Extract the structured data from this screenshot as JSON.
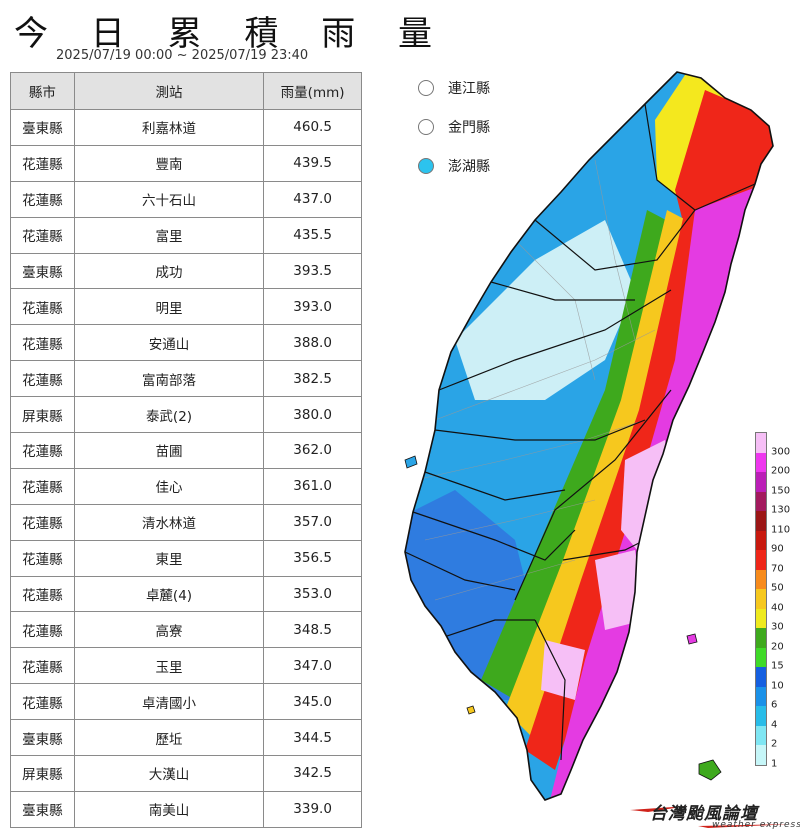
{
  "title": "今 日 累 積 雨 量",
  "period": "2025/07/19 00:00 ~ 2025/07/19 23:40",
  "table": {
    "headers": [
      "縣市",
      "測站",
      "雨量(mm)"
    ],
    "rows": [
      {
        "county": "臺東縣",
        "station": "利嘉林道",
        "rain": "460.5"
      },
      {
        "county": "花蓮縣",
        "station": "豐南",
        "rain": "439.5"
      },
      {
        "county": "花蓮縣",
        "station": "六十石山",
        "rain": "437.0"
      },
      {
        "county": "花蓮縣",
        "station": "富里",
        "rain": "435.5"
      },
      {
        "county": "臺東縣",
        "station": "成功",
        "rain": "393.5"
      },
      {
        "county": "花蓮縣",
        "station": "明里",
        "rain": "393.0"
      },
      {
        "county": "花蓮縣",
        "station": "安通山",
        "rain": "388.0"
      },
      {
        "county": "花蓮縣",
        "station": "富南部落",
        "rain": "382.5"
      },
      {
        "county": "屏東縣",
        "station": "泰武(2)",
        "rain": "380.0"
      },
      {
        "county": "花蓮縣",
        "station": "苗圃",
        "rain": "362.0"
      },
      {
        "county": "花蓮縣",
        "station": "佳心",
        "rain": "361.0"
      },
      {
        "county": "花蓮縣",
        "station": "清水林道",
        "rain": "357.0"
      },
      {
        "county": "花蓮縣",
        "station": "東里",
        "rain": "356.5"
      },
      {
        "county": "花蓮縣",
        "station": "卓麓(4)",
        "rain": "353.0"
      },
      {
        "county": "花蓮縣",
        "station": "高寮",
        "rain": "348.5"
      },
      {
        "county": "花蓮縣",
        "station": "玉里",
        "rain": "347.0"
      },
      {
        "county": "花蓮縣",
        "station": "卓清國小",
        "rain": "345.0"
      },
      {
        "county": "臺東縣",
        "station": "歷坵",
        "rain": "344.5"
      },
      {
        "county": "屏東縣",
        "station": "大漢山",
        "rain": "342.5"
      },
      {
        "county": "臺東縣",
        "station": "南美山",
        "rain": "339.0"
      }
    ]
  },
  "islands": [
    {
      "name": "連江縣",
      "color": "#ffffff"
    },
    {
      "name": "金門縣",
      "color": "#ffffff"
    },
    {
      "name": "澎湖縣",
      "color": "#2cc3ee"
    }
  ],
  "legend": {
    "levels": [
      "300",
      "200",
      "150",
      "130",
      "110",
      "90",
      "70",
      "50",
      "40",
      "30",
      "20",
      "15",
      "10",
      "6",
      "4",
      "2",
      "1"
    ],
    "colors": [
      "#f6bff6",
      "#ee37ee",
      "#bb1fb7",
      "#a31a5e",
      "#9c1616",
      "#c8190f",
      "#ef2619",
      "#f78b1c",
      "#f6c81e",
      "#efea1e",
      "#3ea91d",
      "#3fda28",
      "#155fe0",
      "#1a91e8",
      "#28bce8",
      "#7fe6f3",
      "#c6f6f8"
    ]
  },
  "logo": {
    "text": "台灣颱風論壇",
    "sub": "weather express"
  }
}
